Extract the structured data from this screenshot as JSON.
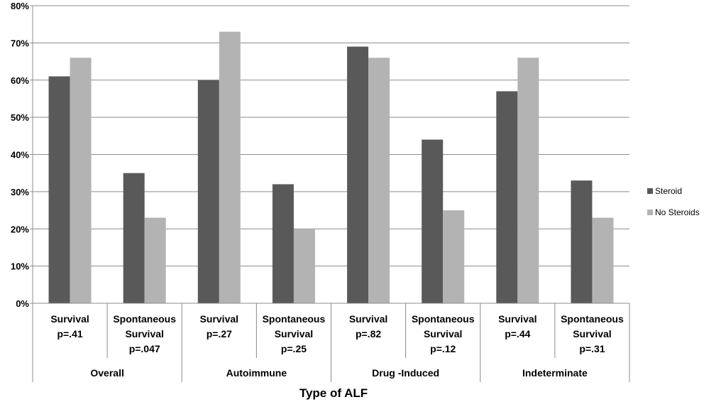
{
  "chart_data": {
    "type": "bar",
    "xlabel": "Type of ALF",
    "ylabel": "",
    "ylim": [
      0,
      80
    ],
    "yticks": [
      0,
      10,
      20,
      30,
      40,
      50,
      60,
      70,
      80
    ],
    "ytick_suffix": "%",
    "grid": true,
    "legend_position": "right",
    "groups": [
      {
        "label": "Overall",
        "categories": [
          [
            "Survival",
            "p=.41"
          ],
          [
            "Spontaneous",
            "Survival",
            "p=.047"
          ]
        ]
      },
      {
        "label": "Autoimmune",
        "categories": [
          [
            "Survival",
            "p=.27"
          ],
          [
            "Spontaneous",
            "Survival",
            "p=.25"
          ]
        ]
      },
      {
        "label": "Drug -Induced",
        "categories": [
          [
            "Survival",
            "p=.82"
          ],
          [
            "Spontaneous",
            "Survival",
            "p=.12"
          ]
        ]
      },
      {
        "label": "Indeterminate",
        "categories": [
          [
            "Survival",
            "p=.44"
          ],
          [
            "Spontaneous",
            "Survival",
            "p=.31"
          ]
        ]
      }
    ],
    "series": [
      {
        "name": "Steroid",
        "color": "#595959",
        "values": [
          61,
          35,
          60,
          32,
          69,
          44,
          57,
          33
        ]
      },
      {
        "name": "No Steroids",
        "color": "#b3b3b3",
        "values": [
          66,
          23,
          73,
          20,
          66,
          25,
          66,
          23
        ]
      }
    ]
  }
}
